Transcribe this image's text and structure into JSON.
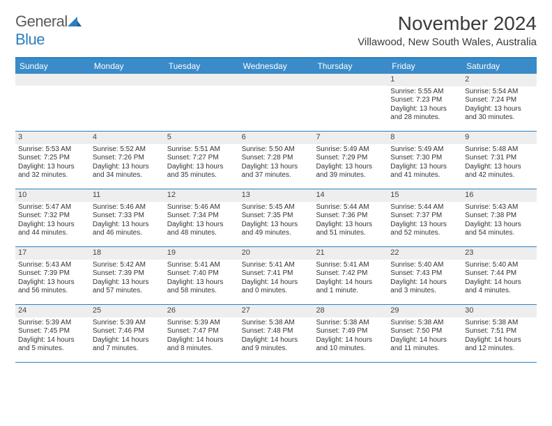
{
  "logo": {
    "word1": "General",
    "word2": "Blue"
  },
  "title": "November 2024",
  "location": "Villawood, New South Wales, Australia",
  "colors": {
    "header_bar": "#3a8bc9",
    "border": "#2a7fbf",
    "daynum_bg": "#eeeeee",
    "text": "#333333",
    "white": "#ffffff"
  },
  "weekdays": [
    "Sunday",
    "Monday",
    "Tuesday",
    "Wednesday",
    "Thursday",
    "Friday",
    "Saturday"
  ],
  "weeks": [
    [
      {
        "n": "",
        "sr": "",
        "ss": "",
        "dl": ""
      },
      {
        "n": "",
        "sr": "",
        "ss": "",
        "dl": ""
      },
      {
        "n": "",
        "sr": "",
        "ss": "",
        "dl": ""
      },
      {
        "n": "",
        "sr": "",
        "ss": "",
        "dl": ""
      },
      {
        "n": "",
        "sr": "",
        "ss": "",
        "dl": ""
      },
      {
        "n": "1",
        "sr": "Sunrise: 5:55 AM",
        "ss": "Sunset: 7:23 PM",
        "dl": "Daylight: 13 hours and 28 minutes."
      },
      {
        "n": "2",
        "sr": "Sunrise: 5:54 AM",
        "ss": "Sunset: 7:24 PM",
        "dl": "Daylight: 13 hours and 30 minutes."
      }
    ],
    [
      {
        "n": "3",
        "sr": "Sunrise: 5:53 AM",
        "ss": "Sunset: 7:25 PM",
        "dl": "Daylight: 13 hours and 32 minutes."
      },
      {
        "n": "4",
        "sr": "Sunrise: 5:52 AM",
        "ss": "Sunset: 7:26 PM",
        "dl": "Daylight: 13 hours and 34 minutes."
      },
      {
        "n": "5",
        "sr": "Sunrise: 5:51 AM",
        "ss": "Sunset: 7:27 PM",
        "dl": "Daylight: 13 hours and 35 minutes."
      },
      {
        "n": "6",
        "sr": "Sunrise: 5:50 AM",
        "ss": "Sunset: 7:28 PM",
        "dl": "Daylight: 13 hours and 37 minutes."
      },
      {
        "n": "7",
        "sr": "Sunrise: 5:49 AM",
        "ss": "Sunset: 7:29 PM",
        "dl": "Daylight: 13 hours and 39 minutes."
      },
      {
        "n": "8",
        "sr": "Sunrise: 5:49 AM",
        "ss": "Sunset: 7:30 PM",
        "dl": "Daylight: 13 hours and 41 minutes."
      },
      {
        "n": "9",
        "sr": "Sunrise: 5:48 AM",
        "ss": "Sunset: 7:31 PM",
        "dl": "Daylight: 13 hours and 42 minutes."
      }
    ],
    [
      {
        "n": "10",
        "sr": "Sunrise: 5:47 AM",
        "ss": "Sunset: 7:32 PM",
        "dl": "Daylight: 13 hours and 44 minutes."
      },
      {
        "n": "11",
        "sr": "Sunrise: 5:46 AM",
        "ss": "Sunset: 7:33 PM",
        "dl": "Daylight: 13 hours and 46 minutes."
      },
      {
        "n": "12",
        "sr": "Sunrise: 5:46 AM",
        "ss": "Sunset: 7:34 PM",
        "dl": "Daylight: 13 hours and 48 minutes."
      },
      {
        "n": "13",
        "sr": "Sunrise: 5:45 AM",
        "ss": "Sunset: 7:35 PM",
        "dl": "Daylight: 13 hours and 49 minutes."
      },
      {
        "n": "14",
        "sr": "Sunrise: 5:44 AM",
        "ss": "Sunset: 7:36 PM",
        "dl": "Daylight: 13 hours and 51 minutes."
      },
      {
        "n": "15",
        "sr": "Sunrise: 5:44 AM",
        "ss": "Sunset: 7:37 PM",
        "dl": "Daylight: 13 hours and 52 minutes."
      },
      {
        "n": "16",
        "sr": "Sunrise: 5:43 AM",
        "ss": "Sunset: 7:38 PM",
        "dl": "Daylight: 13 hours and 54 minutes."
      }
    ],
    [
      {
        "n": "17",
        "sr": "Sunrise: 5:43 AM",
        "ss": "Sunset: 7:39 PM",
        "dl": "Daylight: 13 hours and 56 minutes."
      },
      {
        "n": "18",
        "sr": "Sunrise: 5:42 AM",
        "ss": "Sunset: 7:39 PM",
        "dl": "Daylight: 13 hours and 57 minutes."
      },
      {
        "n": "19",
        "sr": "Sunrise: 5:41 AM",
        "ss": "Sunset: 7:40 PM",
        "dl": "Daylight: 13 hours and 58 minutes."
      },
      {
        "n": "20",
        "sr": "Sunrise: 5:41 AM",
        "ss": "Sunset: 7:41 PM",
        "dl": "Daylight: 14 hours and 0 minutes."
      },
      {
        "n": "21",
        "sr": "Sunrise: 5:41 AM",
        "ss": "Sunset: 7:42 PM",
        "dl": "Daylight: 14 hours and 1 minute."
      },
      {
        "n": "22",
        "sr": "Sunrise: 5:40 AM",
        "ss": "Sunset: 7:43 PM",
        "dl": "Daylight: 14 hours and 3 minutes."
      },
      {
        "n": "23",
        "sr": "Sunrise: 5:40 AM",
        "ss": "Sunset: 7:44 PM",
        "dl": "Daylight: 14 hours and 4 minutes."
      }
    ],
    [
      {
        "n": "24",
        "sr": "Sunrise: 5:39 AM",
        "ss": "Sunset: 7:45 PM",
        "dl": "Daylight: 14 hours and 5 minutes."
      },
      {
        "n": "25",
        "sr": "Sunrise: 5:39 AM",
        "ss": "Sunset: 7:46 PM",
        "dl": "Daylight: 14 hours and 7 minutes."
      },
      {
        "n": "26",
        "sr": "Sunrise: 5:39 AM",
        "ss": "Sunset: 7:47 PM",
        "dl": "Daylight: 14 hours and 8 minutes."
      },
      {
        "n": "27",
        "sr": "Sunrise: 5:38 AM",
        "ss": "Sunset: 7:48 PM",
        "dl": "Daylight: 14 hours and 9 minutes."
      },
      {
        "n": "28",
        "sr": "Sunrise: 5:38 AM",
        "ss": "Sunset: 7:49 PM",
        "dl": "Daylight: 14 hours and 10 minutes."
      },
      {
        "n": "29",
        "sr": "Sunrise: 5:38 AM",
        "ss": "Sunset: 7:50 PM",
        "dl": "Daylight: 14 hours and 11 minutes."
      },
      {
        "n": "30",
        "sr": "Sunrise: 5:38 AM",
        "ss": "Sunset: 7:51 PM",
        "dl": "Daylight: 14 hours and 12 minutes."
      }
    ]
  ]
}
